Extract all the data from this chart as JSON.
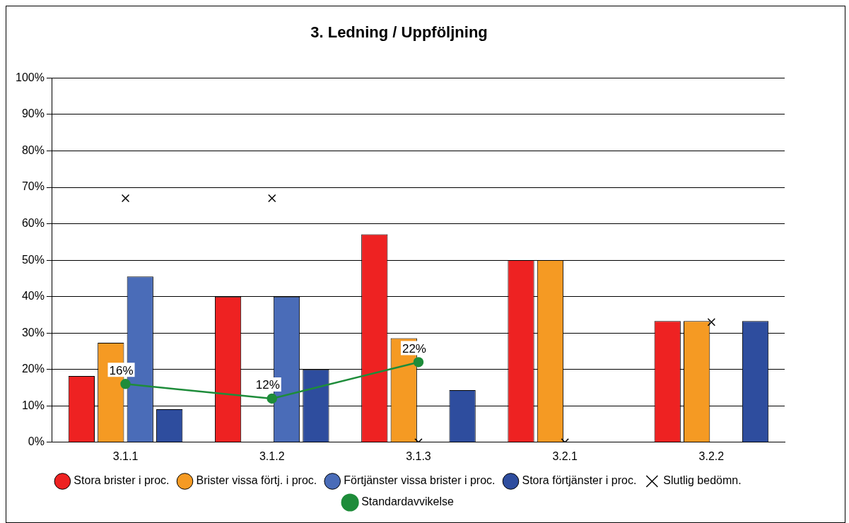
{
  "chart_data": {
    "type": "bar",
    "title": "3. Ledning / Uppföljning",
    "categories": [
      "3.1.1",
      "3.1.2",
      "3.1.3",
      "3.2.1",
      "3.2.2"
    ],
    "series": [
      {
        "name": "Stora brister i proc.",
        "color": "#ee2222",
        "values": [
          18.2,
          40,
          57.1,
          50,
          33.3
        ]
      },
      {
        "name": "Brister vissa förtj. i proc.",
        "color": "#f59a23",
        "values": [
          27.3,
          0,
          28.6,
          50,
          33.3
        ]
      },
      {
        "name": "Förtjänster vissa brister i proc.",
        "color": "#4a6cb8",
        "values": [
          45.5,
          40,
          0,
          0,
          0
        ]
      },
      {
        "name": "Stora förtjänster i proc.",
        "color": "#2e4d9e",
        "values": [
          9.1,
          20,
          14.3,
          0,
          33.3
        ]
      },
      {
        "name": "Slutlig bedömn.",
        "type": "scatter",
        "marker": "cross",
        "color": "#000000",
        "x": [
          "3.1.1",
          "3.1.2",
          "3.1.3",
          "3.2.1",
          "3.2.2"
        ],
        "values": [
          67,
          67,
          0,
          0,
          33
        ]
      },
      {
        "name": "Standardavvikelse",
        "type": "line",
        "marker": "circle",
        "color": "#1e8c3a",
        "values": [
          16,
          12,
          22,
          null,
          null
        ],
        "value_labels": [
          "16%",
          "12%",
          "22%",
          null,
          null
        ]
      }
    ],
    "ylim": [
      0,
      100
    ],
    "yticks": [
      {
        "value": 0,
        "label": "0%"
      },
      {
        "value": 10,
        "label": "10%"
      },
      {
        "value": 20,
        "label": "20%"
      },
      {
        "value": 30,
        "label": "30%"
      },
      {
        "value": 40,
        "label": "40%"
      },
      {
        "value": 50,
        "label": "50%"
      },
      {
        "value": 60,
        "label": "60%"
      },
      {
        "value": 70,
        "label": "70%"
      },
      {
        "value": 80,
        "label": "80%"
      },
      {
        "value": 90,
        "label": "90%"
      },
      {
        "value": 100,
        "label": "100%"
      }
    ],
    "grid": "y",
    "legend": "bottom"
  }
}
